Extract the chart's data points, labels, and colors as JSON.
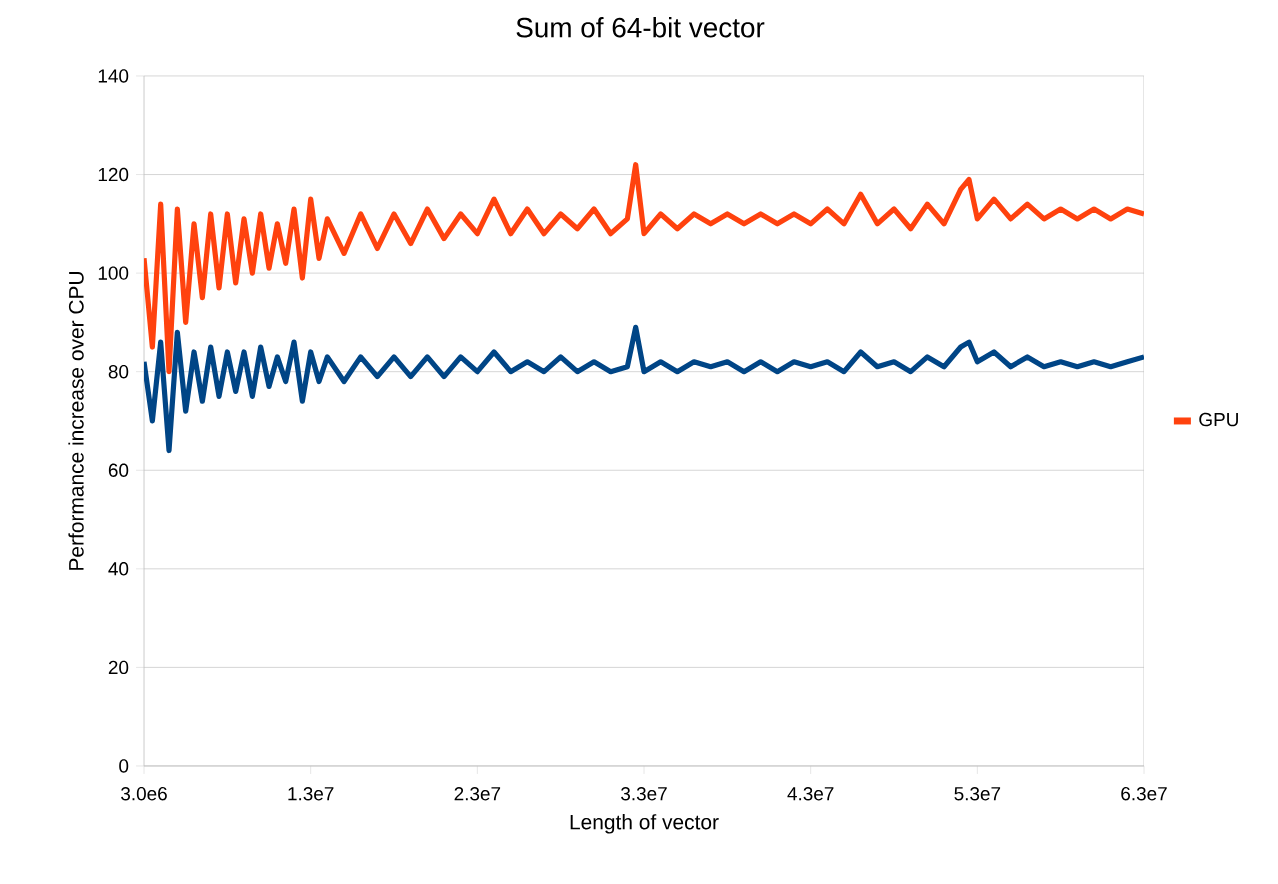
{
  "chart_data": {
    "type": "line",
    "title": "Sum of 64-bit vector",
    "xlabel": "Length of vector",
    "ylabel": "Performance increase over CPU",
    "x": [
      3000000,
      3500000,
      4000000,
      4500000,
      5000000,
      5500000,
      6000000,
      6500000,
      7000000,
      7500000,
      8000000,
      8500000,
      9000000,
      9500000,
      10000000,
      10500000,
      11000000,
      11500000,
      12000000,
      12500000,
      13000000,
      13500000,
      14000000,
      15000000,
      16000000,
      17000000,
      18000000,
      19000000,
      20000000,
      21000000,
      22000000,
      23000000,
      24000000,
      25000000,
      26000000,
      27000000,
      28000000,
      29000000,
      30000000,
      31000000,
      32000000,
      32500000,
      33000000,
      34000000,
      35000000,
      36000000,
      37000000,
      38000000,
      39000000,
      40000000,
      41000000,
      42000000,
      43000000,
      44000000,
      45000000,
      46000000,
      47000000,
      48000000,
      49000000,
      50000000,
      51000000,
      52000000,
      52500000,
      53000000,
      54000000,
      55000000,
      56000000,
      57000000,
      58000000,
      59000000,
      60000000,
      61000000,
      62000000,
      63000000
    ],
    "series": [
      {
        "name": "GPU",
        "color": "#ff420e",
        "values": [
          103,
          85,
          114,
          80,
          113,
          90,
          110,
          95,
          112,
          97,
          112,
          98,
          111,
          100,
          112,
          101,
          110,
          102,
          113,
          99,
          115,
          103,
          111,
          104,
          112,
          105,
          112,
          106,
          113,
          107,
          112,
          108,
          115,
          108,
          113,
          108,
          112,
          109,
          113,
          108,
          111,
          122,
          108,
          112,
          109,
          112,
          110,
          112,
          110,
          112,
          110,
          112,
          110,
          113,
          110,
          116,
          110,
          113,
          109,
          114,
          110,
          117,
          119,
          111,
          115,
          111,
          114,
          111,
          113,
          111,
          113,
          111,
          113,
          112
        ]
      },
      {
        "color": "#004586",
        "values": [
          82,
          70,
          86,
          64,
          88,
          72,
          84,
          74,
          85,
          75,
          84,
          76,
          84,
          75,
          85,
          77,
          83,
          78,
          86,
          74,
          84,
          78,
          83,
          78,
          83,
          79,
          83,
          79,
          83,
          79,
          83,
          80,
          84,
          80,
          82,
          80,
          83,
          80,
          82,
          80,
          81,
          89,
          80,
          82,
          80,
          82,
          81,
          82,
          80,
          82,
          80,
          82,
          81,
          82,
          80,
          84,
          81,
          82,
          80,
          83,
          81,
          85,
          86,
          82,
          84,
          81,
          83,
          81,
          82,
          81,
          82,
          81,
          82,
          83
        ]
      }
    ],
    "xlim": [
      3000000,
      63000000
    ],
    "xticks": [
      {
        "value": 3000000,
        "label": "3.0e6"
      },
      {
        "value": 13000000,
        "label": "1.3e7"
      },
      {
        "value": 23000000,
        "label": "2.3e7"
      },
      {
        "value": 33000000,
        "label": "3.3e7"
      },
      {
        "value": 43000000,
        "label": "4.3e7"
      },
      {
        "value": 53000000,
        "label": "5.3e7"
      },
      {
        "value": 63000000,
        "label": "6.3e7"
      }
    ],
    "ylim": [
      0,
      140
    ],
    "yticks": [
      0,
      20,
      40,
      60,
      80,
      100,
      120,
      140
    ],
    "grid": "y",
    "legend": "right",
    "marker": "none",
    "line_style": "solid"
  }
}
